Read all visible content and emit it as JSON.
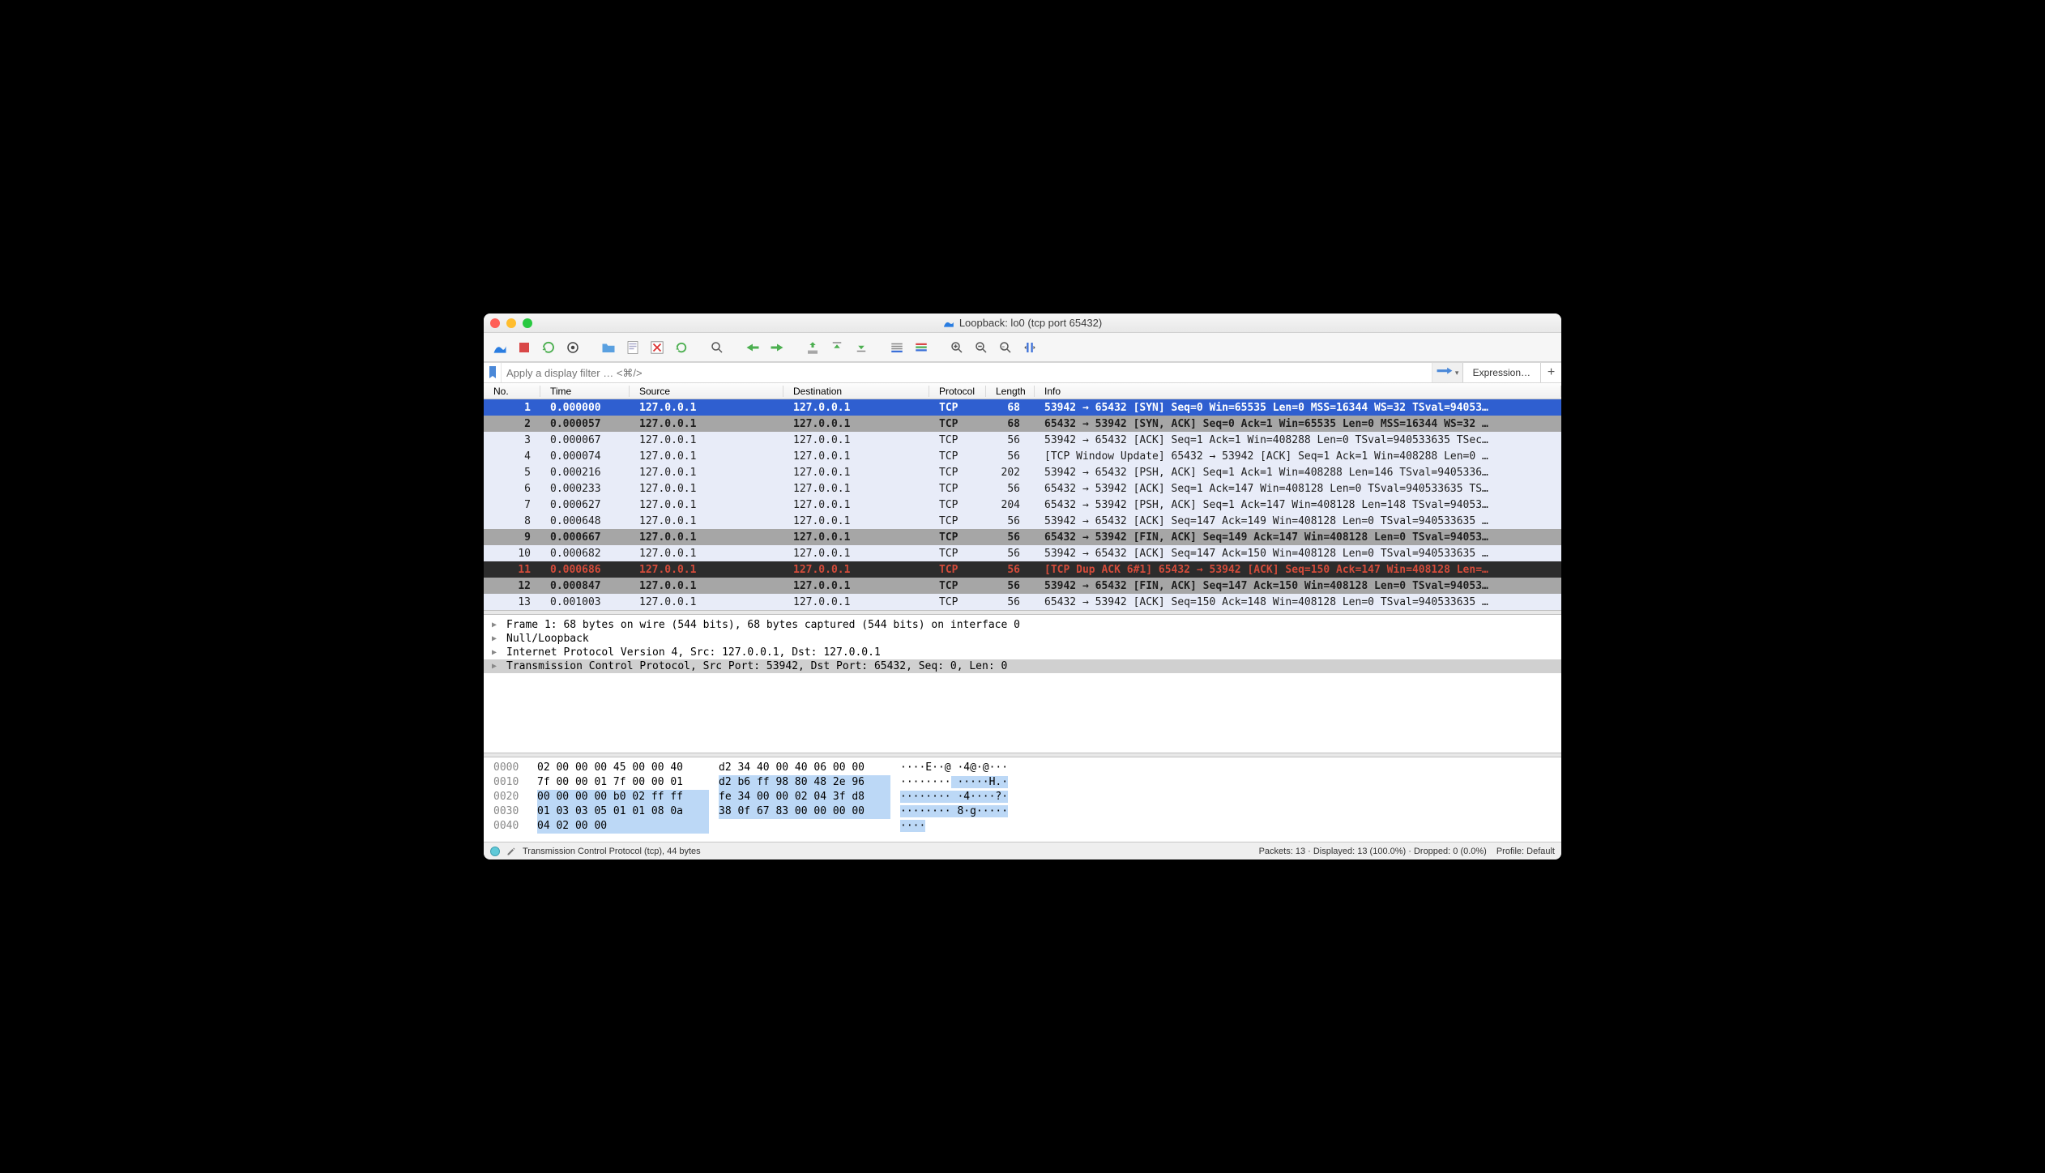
{
  "window": {
    "title": "Loopback: lo0   (tcp port 65432)"
  },
  "filter": {
    "placeholder": "Apply a display filter … <⌘/>",
    "expression_label": "Expression…"
  },
  "columns": {
    "no": "No.",
    "time": "Time",
    "src": "Source",
    "dst": "Destination",
    "proto": "Protocol",
    "len": "Length",
    "info": "Info"
  },
  "row_colors": {
    "selected_bg": "#2f5fd0",
    "selected_fg": "#ffffff",
    "gray_bg": "#a6a6a6",
    "gray_fg": "#1e1e1e",
    "light_bg": "#e8ecf8",
    "light_fg": "#1e1e1e",
    "dup_bg": "#2c2c2c",
    "dup_fg": "#d34b3a"
  },
  "packets": [
    {
      "no": "1",
      "time": "0.000000",
      "src": "127.0.0.1",
      "dst": "127.0.0.1",
      "proto": "TCP",
      "len": "68",
      "info": "53942 → 65432 [SYN] Seq=0 Win=65535 Len=0 MSS=16344 WS=32 TSval=94053…",
      "style": "selected"
    },
    {
      "no": "2",
      "time": "0.000057",
      "src": "127.0.0.1",
      "dst": "127.0.0.1",
      "proto": "TCP",
      "len": "68",
      "info": "65432 → 53942 [SYN, ACK] Seq=0 Ack=1 Win=65535 Len=0 MSS=16344 WS=32 …",
      "style": "gray"
    },
    {
      "no": "3",
      "time": "0.000067",
      "src": "127.0.0.1",
      "dst": "127.0.0.1",
      "proto": "TCP",
      "len": "56",
      "info": "53942 → 65432 [ACK] Seq=1 Ack=1 Win=408288 Len=0 TSval=940533635 TSec…",
      "style": "light"
    },
    {
      "no": "4",
      "time": "0.000074",
      "src": "127.0.0.1",
      "dst": "127.0.0.1",
      "proto": "TCP",
      "len": "56",
      "info": "[TCP Window Update] 65432 → 53942 [ACK] Seq=1 Ack=1 Win=408288 Len=0 …",
      "style": "light"
    },
    {
      "no": "5",
      "time": "0.000216",
      "src": "127.0.0.1",
      "dst": "127.0.0.1",
      "proto": "TCP",
      "len": "202",
      "info": "53942 → 65432 [PSH, ACK] Seq=1 Ack=1 Win=408288 Len=146 TSval=9405336…",
      "style": "light"
    },
    {
      "no": "6",
      "time": "0.000233",
      "src": "127.0.0.1",
      "dst": "127.0.0.1",
      "proto": "TCP",
      "len": "56",
      "info": "65432 → 53942 [ACK] Seq=1 Ack=147 Win=408128 Len=0 TSval=940533635 TS…",
      "style": "light"
    },
    {
      "no": "7",
      "time": "0.000627",
      "src": "127.0.0.1",
      "dst": "127.0.0.1",
      "proto": "TCP",
      "len": "204",
      "info": "65432 → 53942 [PSH, ACK] Seq=1 Ack=147 Win=408128 Len=148 TSval=94053…",
      "style": "light"
    },
    {
      "no": "8",
      "time": "0.000648",
      "src": "127.0.0.1",
      "dst": "127.0.0.1",
      "proto": "TCP",
      "len": "56",
      "info": "53942 → 65432 [ACK] Seq=147 Ack=149 Win=408128 Len=0 TSval=940533635 …",
      "style": "light"
    },
    {
      "no": "9",
      "time": "0.000667",
      "src": "127.0.0.1",
      "dst": "127.0.0.1",
      "proto": "TCP",
      "len": "56",
      "info": "65432 → 53942 [FIN, ACK] Seq=149 Ack=147 Win=408128 Len=0 TSval=94053…",
      "style": "gray"
    },
    {
      "no": "10",
      "time": "0.000682",
      "src": "127.0.0.1",
      "dst": "127.0.0.1",
      "proto": "TCP",
      "len": "56",
      "info": "53942 → 65432 [ACK] Seq=147 Ack=150 Win=408128 Len=0 TSval=940533635 …",
      "style": "light"
    },
    {
      "no": "11",
      "time": "0.000686",
      "src": "127.0.0.1",
      "dst": "127.0.0.1",
      "proto": "TCP",
      "len": "56",
      "info": "[TCP Dup ACK 6#1] 65432 → 53942 [ACK] Seq=150 Ack=147 Win=408128 Len=…",
      "style": "dup"
    },
    {
      "no": "12",
      "time": "0.000847",
      "src": "127.0.0.1",
      "dst": "127.0.0.1",
      "proto": "TCP",
      "len": "56",
      "info": "53942 → 65432 [FIN, ACK] Seq=147 Ack=150 Win=408128 Len=0 TSval=94053…",
      "style": "gray"
    },
    {
      "no": "13",
      "time": "0.001003",
      "src": "127.0.0.1",
      "dst": "127.0.0.1",
      "proto": "TCP",
      "len": "56",
      "info": "65432 → 53942 [ACK] Seq=150 Ack=148 Win=408128 Len=0 TSval=940533635 …",
      "style": "light"
    }
  ],
  "details": [
    {
      "label": "Frame 1: 68 bytes on wire (544 bits), 68 bytes captured (544 bits) on interface 0",
      "hl": false
    },
    {
      "label": "Null/Loopback",
      "hl": false
    },
    {
      "label": "Internet Protocol Version 4, Src: 127.0.0.1, Dst: 127.0.0.1",
      "hl": false
    },
    {
      "label": "Transmission Control Protocol, Src Port: 53942, Dst Port: 65432, Seq: 0, Len: 0",
      "hl": true
    }
  ],
  "hex": [
    {
      "off": "0000",
      "b1": "02 00 00 00 45 00 00 40",
      "b2": "d2 34 40 00 40 06 00 00",
      "a": "····E··@ ·4@·@···",
      "hl1": false,
      "hl2": false,
      "ahl": ""
    },
    {
      "off": "0010",
      "b1": "7f 00 00 01 7f 00 00 01",
      "b2": "d2 b6 ff 98 80 48 2e 96",
      "a": "········ ·····H.·",
      "hl1": false,
      "hl2": true,
      "ahl": "right"
    },
    {
      "off": "0020",
      "b1": "00 00 00 00 b0 02 ff ff",
      "b2": "fe 34 00 00 02 04 3f d8",
      "a": "········ ·4····?·",
      "hl1": true,
      "hl2": true,
      "ahl": "all"
    },
    {
      "off": "0030",
      "b1": "01 03 03 05 01 01 08 0a",
      "b2": "38 0f 67 83 00 00 00 00",
      "a": "········ 8·g·····",
      "hl1": true,
      "hl2": true,
      "ahl": "all"
    },
    {
      "off": "0040",
      "b1": "04 02 00 00",
      "b2": "",
      "a": "····",
      "hl1": true,
      "hl2": false,
      "ahl": "left"
    }
  ],
  "status": {
    "left": "Transmission Control Protocol (tcp), 44 bytes",
    "packets": "Packets: 13 · Displayed: 13 (100.0%) · Dropped: 0 (0.0%)",
    "profile": "Profile: Default"
  }
}
